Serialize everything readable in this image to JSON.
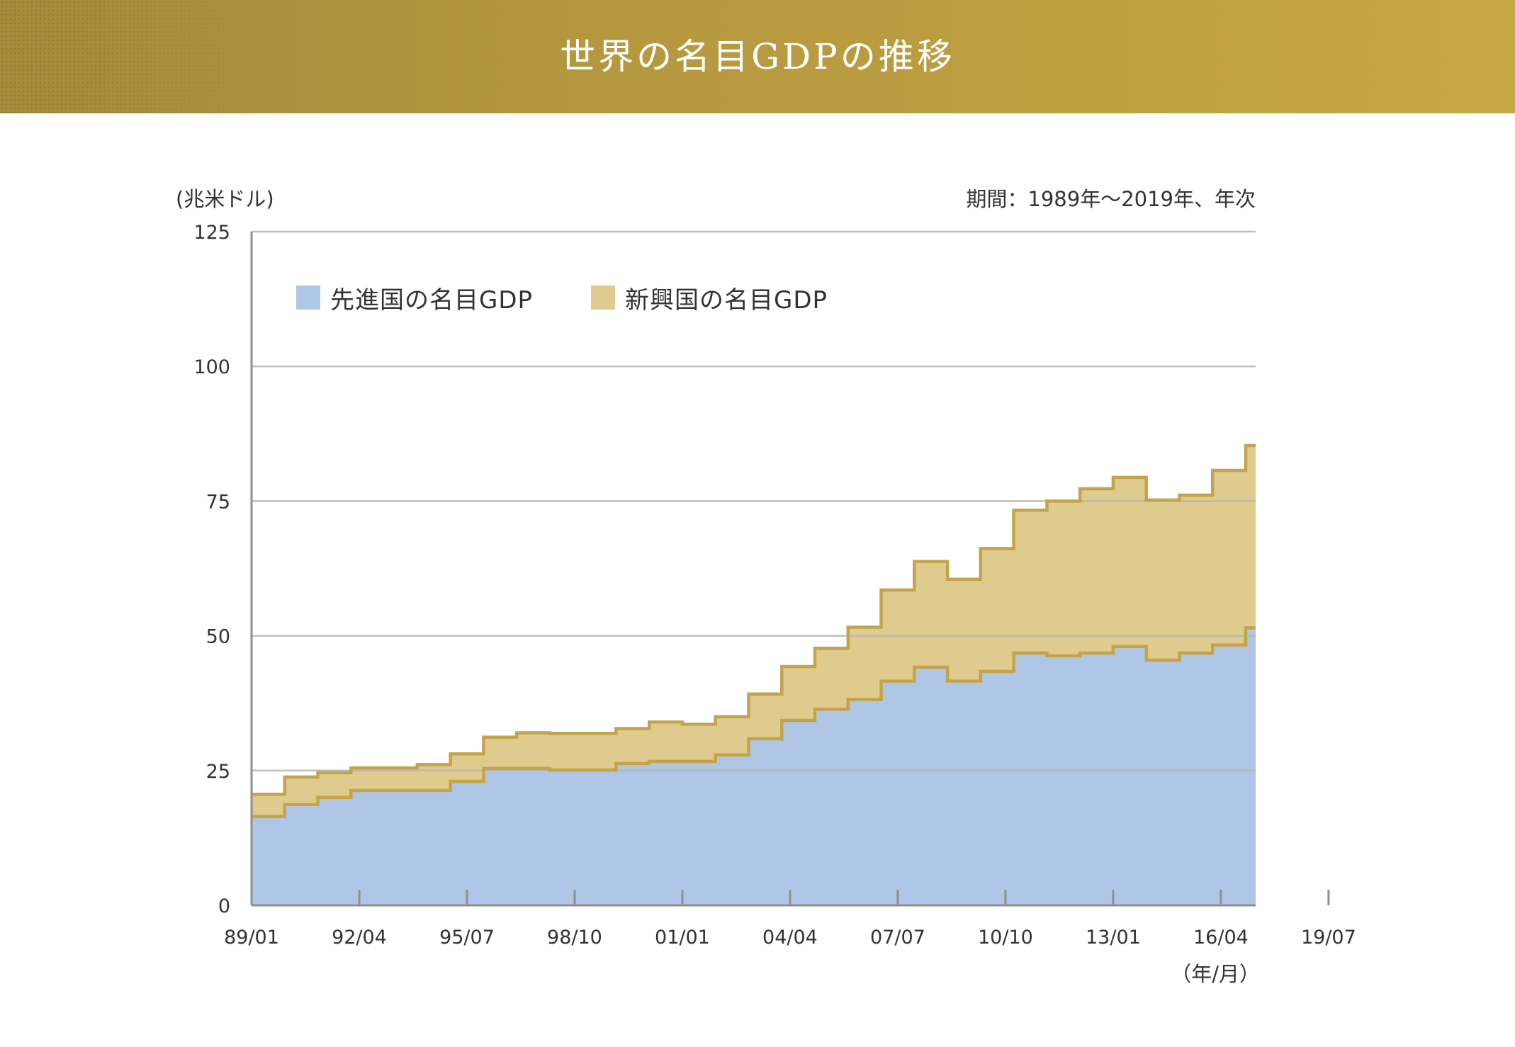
{
  "header": {
    "title": "世界の名目GDPの推移"
  },
  "chart_data": {
    "type": "area",
    "title": "世界の名目GDPの推移",
    "ylabel": "(兆米ドル)",
    "xlabel": "（年/月）",
    "period_note": "期間：1989年〜2019年、年次",
    "ylim": [
      0,
      125
    ],
    "yticks": [
      0,
      25,
      50,
      75,
      100,
      125
    ],
    "xticks": [
      "89/01",
      "92/04",
      "95/07",
      "98/10",
      "01/01",
      "04/04",
      "07/07",
      "10/10",
      "13/01",
      "16/04",
      "19/07"
    ],
    "xlim": [
      1989,
      2019.3
    ],
    "grid": true,
    "legend_position": "top-left",
    "stacked": true,
    "step": true,
    "x": [
      1989,
      1990,
      1991,
      1992,
      1993,
      1994,
      1995,
      1996,
      1997,
      1998,
      1999,
      2000,
      2001,
      2002,
      2003,
      2004,
      2005,
      2006,
      2007,
      2008,
      2009,
      2010,
      2011,
      2012,
      2013,
      2014,
      2015,
      2016,
      2017,
      2018,
      2019
    ],
    "series": [
      {
        "name": "先進国の名目GDP",
        "color": "#b0c6e6",
        "values": [
          16.5,
          18.7,
          20.0,
          21.3,
          21.3,
          21.3,
          23.0,
          25.4,
          25.4,
          25.1,
          25.1,
          26.3,
          26.7,
          26.7,
          27.9,
          30.9,
          34.3,
          36.4,
          38.2,
          41.6,
          44.2,
          41.6,
          43.4,
          46.8,
          46.3,
          46.8,
          48.0,
          45.5,
          46.8,
          48.3,
          51.5
        ]
      },
      {
        "name": "新興国の名目GDP",
        "color": "#dfcb8d",
        "values": [
          4.1,
          5.1,
          4.6,
          4.2,
          4.2,
          4.8,
          5.1,
          5.8,
          6.6,
          6.8,
          6.8,
          6.5,
          7.3,
          6.9,
          7.1,
          8.3,
          10.0,
          11.3,
          13.4,
          16.9,
          19.6,
          18.9,
          22.8,
          26.5,
          28.7,
          30.5,
          31.4,
          29.7,
          29.3,
          32.4,
          33.8
        ]
      }
    ],
    "line_color": "#c4a44a",
    "grid_color": "#b5b5b5"
  }
}
